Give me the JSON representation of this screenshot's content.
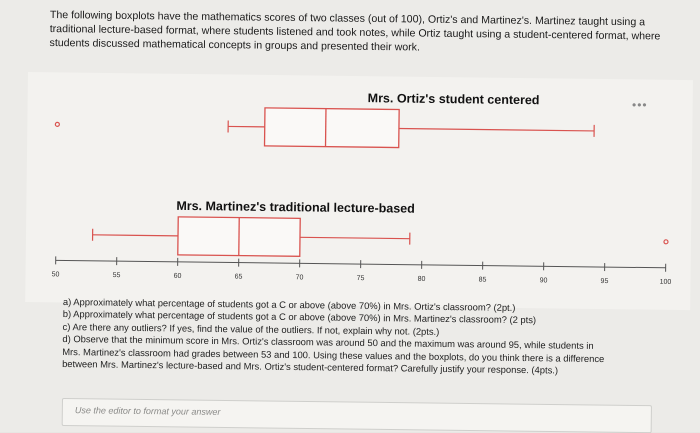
{
  "intro": {
    "lines": [
      "The following boxplots have the mathematics scores of two classes (out of 100), Ortiz's and Martinez's. Martinez taught using a",
      "traditional lecture-based format, where students listened and took notes, while Ortiz taught using a student-centered format, where",
      "students discussed mathematical concepts in groups and presented their work."
    ]
  },
  "chart_data": {
    "type": "boxplot",
    "xlim": [
      50,
      100
    ],
    "ticks": [
      50,
      55,
      60,
      65,
      70,
      75,
      80,
      85,
      90,
      95,
      100
    ],
    "series": [
      {
        "name": "Mrs. Ortiz's student centered",
        "min": 64,
        "q1": 67,
        "median": 72,
        "q3": 78,
        "max": 94,
        "outliers": [
          50
        ]
      },
      {
        "name": "Mrs. Martinez's traditional lecture-based",
        "min": 53,
        "q1": 60,
        "median": 65,
        "q3": 70,
        "max": 79,
        "outliers": [
          100
        ]
      }
    ]
  },
  "questions": [
    "a) Approximately what percentage of students got a C or above (above 70%) in Mrs. Ortiz's classroom? (2pt.)",
    "b) Approximately what percentage of students got a C or above (above 70%) in Mrs. Martinez's classroom? (2 pts)",
    "c) Are there any outliers? If yes, find the value of the outliers. If not, explain why not. (2pts.)",
    "d) Observe that the minimum score in Mrs. Ortiz's classroom was around 50 and the maximum was around 95, while students in",
    "Mrs. Martinez's classroom had grades between 53 and 100. Using these values and the boxplots, do you think there is a difference",
    "between Mrs. Martinez's lecture-based and Mrs. Ortiz's student-centered format? Carefully justify your response. (4pts.)"
  ],
  "editor": {
    "placeholder": "Use the editor to format your answer"
  },
  "icons": {
    "more": "more-options-icon"
  }
}
